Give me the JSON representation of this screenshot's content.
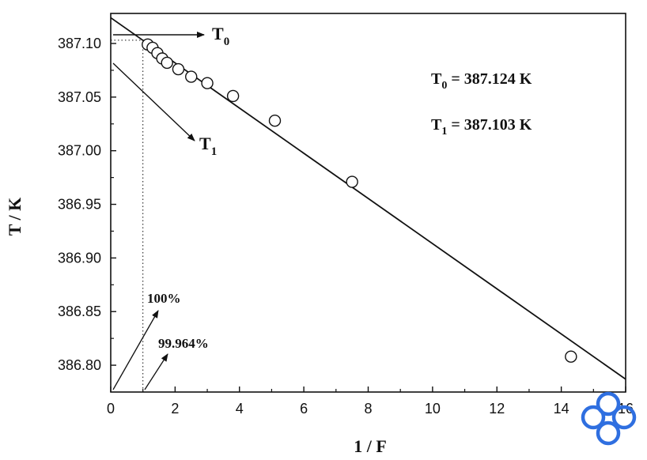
{
  "chart_data": {
    "type": "scatter",
    "xlabel": "1 / F",
    "ylabel": "T / K",
    "xlim": [
      0,
      16
    ],
    "ylim": [
      386.775,
      387.128
    ],
    "xticks": [
      0,
      2,
      4,
      6,
      8,
      10,
      12,
      14,
      16
    ],
    "yticks": [
      386.8,
      386.85,
      386.9,
      386.95,
      387.0,
      387.05,
      387.1
    ],
    "xtick_labels": [
      "0",
      "2",
      "4",
      "6",
      "8",
      "10",
      "12",
      "14",
      "16"
    ],
    "ytick_labels": [
      "386.80",
      "386.85",
      "386.90",
      "386.95",
      "387.00",
      "387.05",
      "387.10"
    ],
    "points": [
      {
        "x": 1.15,
        "y": 387.099
      },
      {
        "x": 1.3,
        "y": 387.096
      },
      {
        "x": 1.45,
        "y": 387.091
      },
      {
        "x": 1.6,
        "y": 387.086
      },
      {
        "x": 1.75,
        "y": 387.082
      },
      {
        "x": 2.1,
        "y": 387.076
      },
      {
        "x": 2.5,
        "y": 387.069
      },
      {
        "x": 3.0,
        "y": 387.063
      },
      {
        "x": 3.8,
        "y": 387.051
      },
      {
        "x": 5.1,
        "y": 387.028
      },
      {
        "x": 7.5,
        "y": 386.971
      },
      {
        "x": 14.3,
        "y": 386.808
      }
    ],
    "fit_line": {
      "x": [
        0,
        16
      ],
      "y": [
        387.124,
        386.787
      ]
    },
    "dotted_guides": {
      "x": 1.0,
      "y": 387.103
    },
    "annotations": {
      "t0_arrow_label": "T",
      "t0_arrow_sub": "0",
      "t1_arrow_label": "T",
      "t1_arrow_sub": "1",
      "t0_eq_label": "T",
      "t0_eq_sub": "0",
      "t0_eq_value": " = 387.124 K",
      "t1_eq_label": "T",
      "t1_eq_sub": "1",
      "t1_eq_value": " = 387.103 K",
      "pct_100": "100%",
      "pct_99": "99.964%"
    },
    "grid": false,
    "legend": "none"
  },
  "watermark_icon": "interlocking-rings-logo",
  "colors": {
    "axis": "#111111",
    "watermark": "#2f6fe0"
  }
}
